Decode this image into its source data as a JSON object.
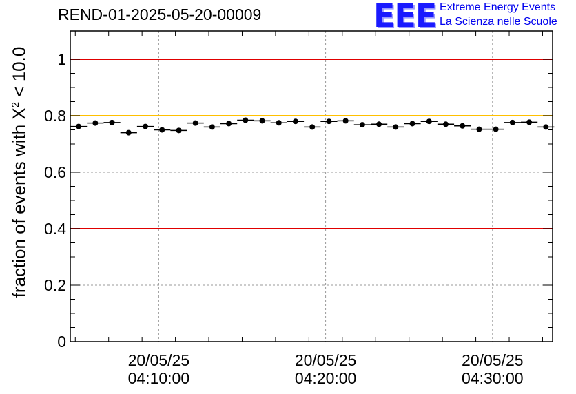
{
  "header": {
    "run_title": "REND-01-2025-05-20-00009"
  },
  "logo": {
    "mark": "EEE",
    "line1": "Extreme Energy Events",
    "line2": "La Scienza nelle Scuole",
    "color": "#0000ee"
  },
  "chart_data": {
    "type": "scatter",
    "title": "REND-01-2025-05-20-00009",
    "ylabel_prefix": "fraction of events with ",
    "ylabel_symbol": "X",
    "ylabel_exp": "2",
    "ylabel_suffix": " < 10.0",
    "ylim": [
      0,
      1.1
    ],
    "xlim_minutes": [
      4.7,
      33.6
    ],
    "y_ticks": [
      0,
      0.2,
      0.4,
      0.6,
      0.8,
      1
    ],
    "y_tick_labels": [
      "0",
      "0.2",
      "0.4",
      "0.6",
      "0.8",
      "1"
    ],
    "x_ticks_minutes": [
      10,
      20,
      30
    ],
    "x_tick_labels": [
      {
        "date": "20/05/25",
        "time": "04:10:00"
      },
      {
        "date": "20/05/25",
        "time": "04:20:00"
      },
      {
        "date": "20/05/25",
        "time": "04:30:00"
      }
    ],
    "reference_lines": [
      {
        "y": 1.0,
        "color": "#e00000"
      },
      {
        "y": 0.8,
        "color": "#ffc000"
      },
      {
        "y": 0.4,
        "color": "#e00000"
      }
    ],
    "grid": true,
    "bin_width_minutes": 1.0,
    "x_minutes": [
      5.2,
      6.2,
      7.2,
      8.2,
      9.2,
      10.2,
      11.2,
      12.2,
      13.2,
      14.2,
      15.2,
      16.2,
      17.2,
      18.2,
      19.2,
      20.2,
      21.2,
      22.2,
      23.2,
      24.2,
      25.2,
      26.2,
      27.2,
      28.2,
      29.2,
      30.2,
      31.2,
      32.2,
      33.2
    ],
    "y_values": [
      0.762,
      0.774,
      0.776,
      0.74,
      0.762,
      0.75,
      0.748,
      0.774,
      0.76,
      0.772,
      0.784,
      0.782,
      0.775,
      0.78,
      0.76,
      0.78,
      0.782,
      0.768,
      0.77,
      0.76,
      0.772,
      0.78,
      0.77,
      0.764,
      0.752,
      0.752,
      0.776,
      0.777,
      0.76
    ],
    "y_errors": [
      0.006,
      0.006,
      0.006,
      0.006,
      0.006,
      0.006,
      0.006,
      0.006,
      0.006,
      0.006,
      0.006,
      0.006,
      0.006,
      0.006,
      0.006,
      0.006,
      0.006,
      0.006,
      0.006,
      0.006,
      0.006,
      0.006,
      0.006,
      0.006,
      0.006,
      0.006,
      0.006,
      0.006,
      0.006
    ]
  }
}
